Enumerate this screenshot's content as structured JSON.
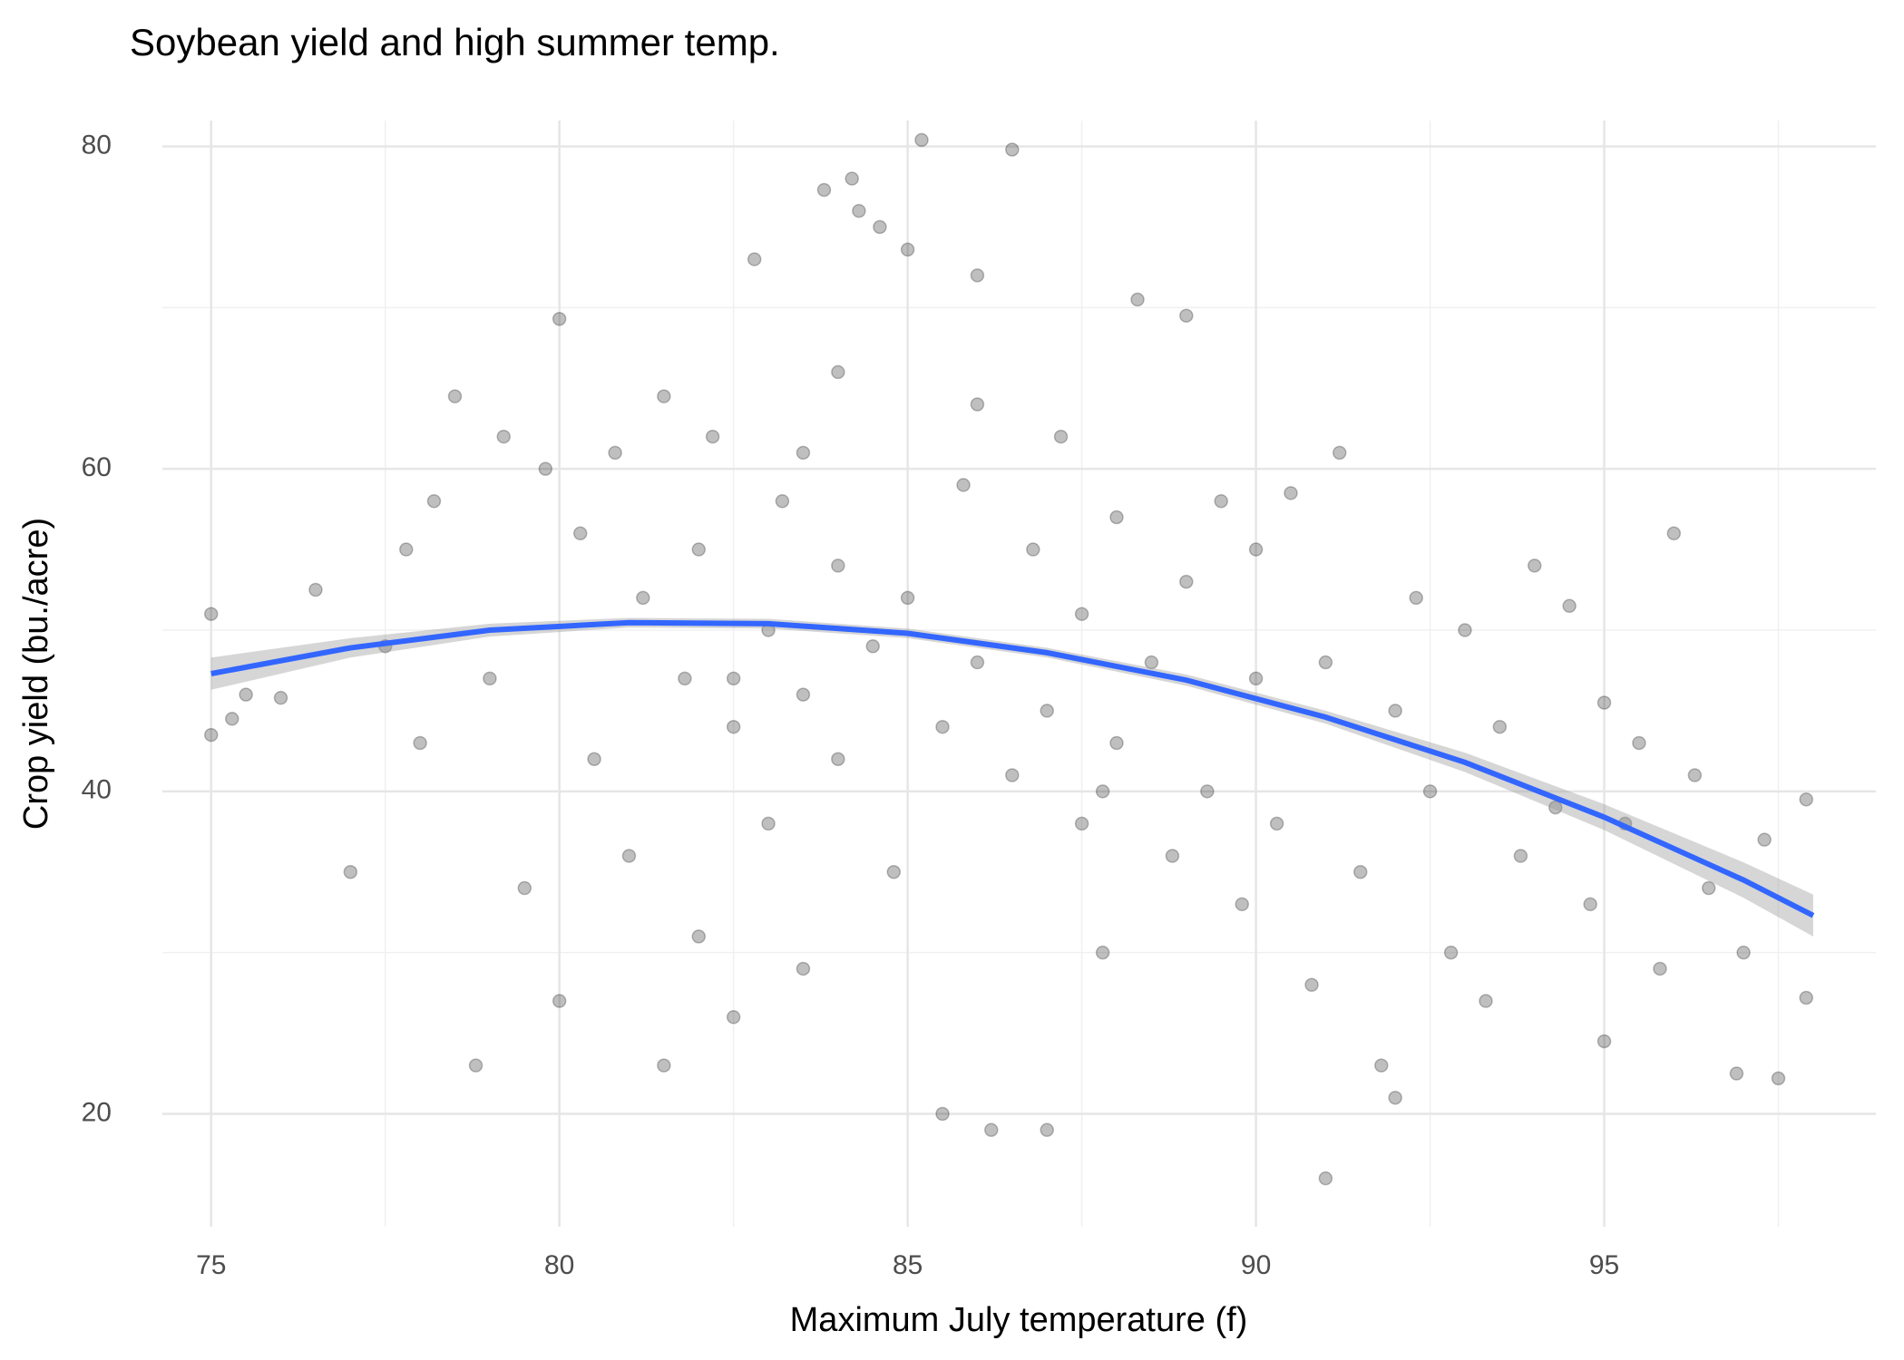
{
  "chart_data": {
    "type": "scatter",
    "title": "Soybean yield and high summer temp.",
    "x_label": "Maximum July temperature (f)",
    "y_label": "Crop yield (bu./acre)",
    "xlim": [
      74.3,
      98.9
    ],
    "ylim": [
      13,
      81.6
    ],
    "xticks": [
      75,
      80,
      85,
      90,
      95
    ],
    "yticks": [
      20,
      40,
      60,
      80
    ],
    "xminorticks": [
      77.5,
      82.5,
      87.5,
      92.5,
      97.5
    ],
    "yminorticks": [
      30,
      50,
      70
    ],
    "grid": true,
    "points": {
      "color": "#000000",
      "opacity": 0.25,
      "x": [
        75,
        75,
        75.3,
        75.5,
        76,
        76.5,
        77,
        77.5,
        77.8,
        78,
        78.2,
        78.5,
        78.8,
        79,
        79.2,
        79.5,
        79.8,
        80,
        80,
        80.3,
        80.5,
        80.8,
        81,
        81.2,
        81.5,
        81.5,
        81.8,
        82,
        82,
        82.2,
        82.5,
        82.5,
        82.8,
        83,
        83,
        83.2,
        83.5,
        83.5,
        83.8,
        84,
        84,
        84.2,
        84.3,
        84.5,
        84.6,
        84.8,
        85,
        85,
        85.2,
        85.5,
        85.5,
        85.8,
        86,
        86,
        86.2,
        86.5,
        86.5,
        86.8,
        87,
        87,
        87.2,
        87.5,
        87.5,
        87.8,
        88,
        88,
        88.3,
        88.5,
        88.8,
        89,
        89,
        89.3,
        89.5,
        89.8,
        90,
        90,
        90.3,
        90.5,
        90.8,
        91,
        91,
        91.2,
        91.5,
        91.8,
        92,
        92,
        92.3,
        92.5,
        92.8,
        93,
        93.3,
        93.5,
        93.8,
        94,
        94.3,
        94.5,
        94.8,
        95,
        95,
        95.3,
        95.5,
        95.8,
        96,
        96.3,
        96.5,
        96.9,
        97,
        97.3,
        97.5,
        97.9,
        97.9,
        84,
        83.5,
        86,
        87.8,
        82.5
      ],
      "y": [
        51,
        43.5,
        44.5,
        46,
        45.8,
        52.5,
        35,
        49,
        55,
        43,
        58,
        64.5,
        23,
        47,
        62,
        34,
        60,
        69.3,
        27,
        56,
        42,
        61,
        36,
        52,
        23,
        64.5,
        47,
        55,
        31,
        62,
        44,
        26,
        73,
        50,
        38,
        58,
        46,
        29,
        77.3,
        54,
        42,
        78,
        76,
        49,
        75,
        35,
        73.6,
        52,
        80.4,
        20,
        44,
        59,
        72,
        48,
        19,
        79.8,
        41,
        55,
        19,
        45,
        62,
        38,
        51,
        30,
        57,
        43,
        70.5,
        48,
        36,
        69.5,
        53,
        40,
        58,
        33,
        47,
        55,
        38,
        58.5,
        28,
        16,
        48,
        61,
        35,
        23,
        45,
        21,
        52,
        40,
        30,
        50,
        27,
        44,
        36,
        54,
        39,
        51.5,
        33,
        45.5,
        24.5,
        38,
        43,
        29,
        56,
        41,
        34,
        22.5,
        30,
        37,
        22.2,
        39.5,
        27.2,
        66,
        61,
        64,
        40,
        47
      ]
    },
    "smooth": {
      "color": "#3366FF",
      "ci_color": "#999999",
      "x": [
        75,
        77,
        79,
        81,
        83,
        85,
        87,
        89,
        91,
        93,
        95,
        97,
        98
      ],
      "y": [
        47.3,
        48.9,
        50.0,
        50.46,
        50.4,
        49.8,
        48.6,
        46.9,
        44.6,
        41.8,
        38.4,
        34.5,
        32.3
      ],
      "ci_lower": [
        46.3,
        48.3,
        49.6,
        50.16,
        50.1,
        49.5,
        48.3,
        46.55,
        44.2,
        41.2,
        37.6,
        33.4,
        31.0
      ],
      "ci_upper": [
        48.3,
        49.5,
        50.4,
        50.76,
        50.7,
        50.1,
        48.9,
        47.25,
        45.0,
        42.4,
        39.2,
        35.6,
        33.6
      ]
    }
  }
}
